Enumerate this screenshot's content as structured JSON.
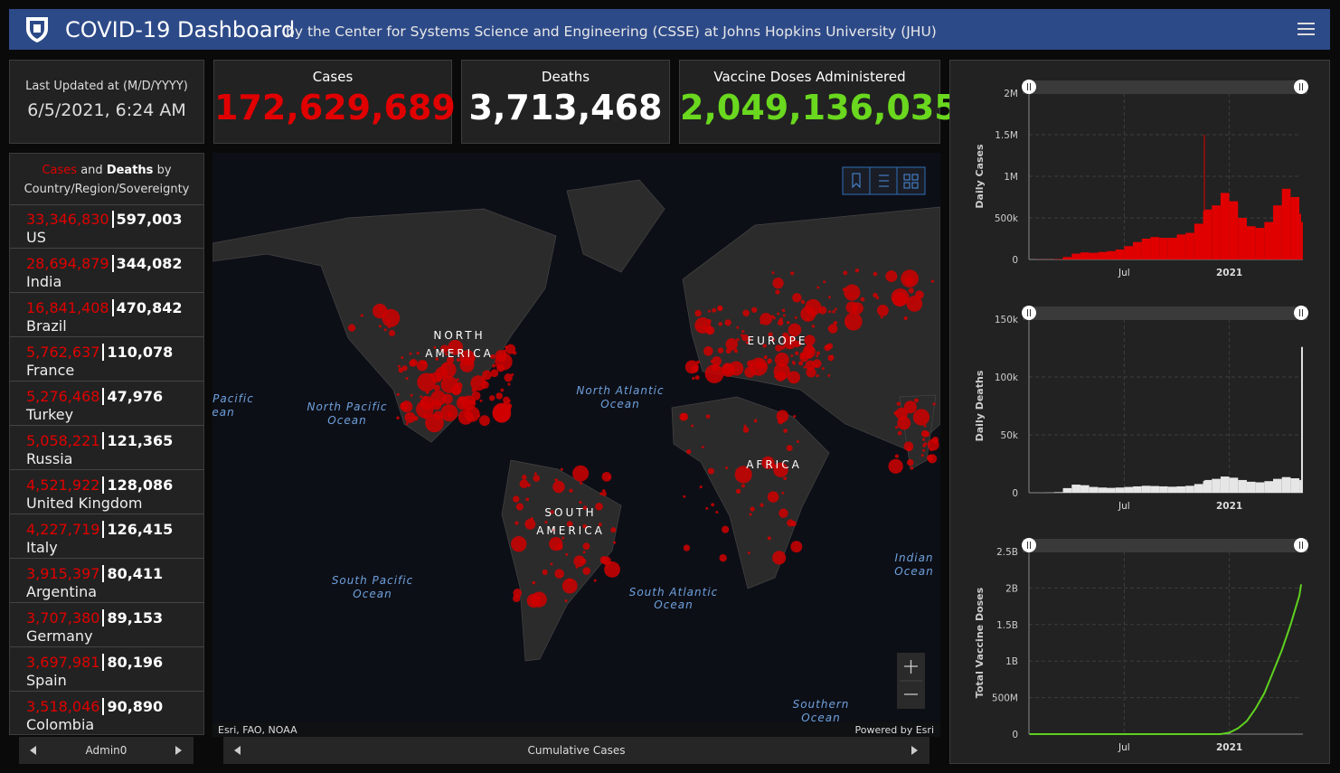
{
  "header": {
    "title": "COVID-19 Dashboard",
    "subtitle": "by the Center for Systems Science and Engineering (CSSE) at Johns Hopkins University (JHU)"
  },
  "last_updated": {
    "label": "Last Updated at (M/D/YYYY)",
    "value": "6/5/2021, 6:24 AM"
  },
  "totals": [
    {
      "label": "Cases",
      "value": "172,629,689"
    },
    {
      "label": "Deaths",
      "value": "3,713,468"
    },
    {
      "label": "Vaccine Doses Administered",
      "value": "2,049,136,035"
    }
  ],
  "country_list": {
    "title": {
      "cases": "Cases",
      "and": "and",
      "deaths": "Deaths",
      "by": "by Country/Region/Sovereignty"
    },
    "rows": [
      {
        "cases": "33,346,830",
        "deaths": "597,003",
        "name": "US"
      },
      {
        "cases": "28,694,879",
        "deaths": "344,082",
        "name": "India"
      },
      {
        "cases": "16,841,408",
        "deaths": "470,842",
        "name": "Brazil"
      },
      {
        "cases": "5,762,637",
        "deaths": "110,078",
        "name": "France"
      },
      {
        "cases": "5,276,468",
        "deaths": "47,976",
        "name": "Turkey"
      },
      {
        "cases": "5,058,221",
        "deaths": "121,365",
        "name": "Russia"
      },
      {
        "cases": "4,521,922",
        "deaths": "128,086",
        "name": "United Kingdom"
      },
      {
        "cases": "4,227,719",
        "deaths": "126,415",
        "name": "Italy"
      },
      {
        "cases": "3,915,397",
        "deaths": "80,411",
        "name": "Argentina"
      },
      {
        "cases": "3,707,380",
        "deaths": "89,153",
        "name": "Germany"
      },
      {
        "cases": "3,697,981",
        "deaths": "80,196",
        "name": "Spain"
      },
      {
        "cases": "3,518,046",
        "deaths": "90,890",
        "name": "Colombia"
      }
    ],
    "footer": "Admin0"
  },
  "map": {
    "labels": [
      "Pacific",
      "ean",
      "North Pacific",
      "Ocean",
      "NORTH",
      "AMERICA",
      "North Atlantic",
      "Ocean",
      "EUROPE",
      "AFRICA",
      "SOUTH",
      "AMERICA",
      "South Pacific",
      "Ocean",
      "South Atlantic",
      "Ocean",
      "Indian",
      "Ocean",
      "Southern",
      "Ocean"
    ],
    "attribution": "Esri, FAO, NOAA",
    "powered": "Powered by Esri",
    "footer": "Cumulative Cases"
  },
  "chart_data": [
    {
      "type": "bar",
      "ylabel": "Daily Cases",
      "color": "#e00000",
      "grid": true,
      "x": [
        0.6,
        1,
        1.5,
        2,
        2.5,
        3,
        3.5,
        4,
        4.5,
        5,
        5.5,
        6,
        6.5,
        7,
        7.5,
        8,
        8.5,
        9,
        9.5,
        10,
        10.5,
        10.55,
        10.6,
        11,
        11.5,
        12,
        12.5,
        13,
        13.5,
        14,
        14.5,
        15,
        15.5,
        16,
        16.1
      ],
      "values": [
        0,
        2000,
        2000,
        5000,
        30000,
        70000,
        85000,
        80000,
        90000,
        100000,
        120000,
        160000,
        210000,
        250000,
        270000,
        260000,
        260000,
        300000,
        320000,
        430000,
        580000,
        1500000,
        600000,
        650000,
        800000,
        700000,
        500000,
        400000,
        380000,
        450000,
        650000,
        850000,
        750000,
        550000,
        450000
      ],
      "xlim": [
        0.56,
        16.1
      ],
      "ylim": [
        0,
        2000000
      ],
      "xticks": [
        {
          "value": 6,
          "label": "Jul"
        },
        {
          "value": 12,
          "label": "2021"
        }
      ],
      "yticks": [
        0,
        {
          "value": 500000,
          "label": "500k"
        },
        {
          "value": 1000000,
          "label": "1M"
        },
        {
          "value": 1500000,
          "label": "1.5M"
        },
        {
          "value": 2000000,
          "label": "2M"
        }
      ]
    },
    {
      "type": "bar",
      "ylabel": "Daily Deaths",
      "color": "#e6e6e6",
      "grid": true,
      "x": [
        0.6,
        1,
        1.5,
        2,
        2.5,
        3,
        3.5,
        4,
        4.5,
        5,
        5.5,
        6,
        6.5,
        7,
        7.5,
        8,
        8.5,
        9,
        9.5,
        10,
        10.5,
        10.55,
        10.6,
        11,
        11.5,
        12,
        12.5,
        13,
        13.5,
        14,
        14.5,
        15,
        15.5,
        16,
        16.1
      ],
      "values": [
        0,
        0,
        100,
        500,
        4000,
        7000,
        6500,
        5000,
        4500,
        4200,
        4500,
        5000,
        5500,
        6000,
        5800,
        5500,
        5200,
        5500,
        6000,
        7500,
        10000,
        10500,
        11000,
        12000,
        14000,
        13000,
        11000,
        9500,
        9000,
        10000,
        12000,
        13500,
        12500,
        11000,
        126000
      ],
      "xlim": [
        0.56,
        16.1
      ],
      "ylim": [
        0,
        150000
      ],
      "xticks": [
        {
          "value": 6,
          "label": "Jul"
        },
        {
          "value": 12,
          "label": "2021"
        }
      ],
      "yticks": [
        0,
        {
          "value": 50000,
          "label": "50k"
        },
        {
          "value": 100000,
          "label": "100k"
        },
        {
          "value": 150000,
          "label": "150k"
        }
      ]
    },
    {
      "type": "line",
      "ylabel": "Total Vaccine Doses",
      "color": "#5fd21f",
      "grid": true,
      "x": [
        0.6,
        11.5,
        12,
        12.5,
        13,
        13.5,
        14,
        14.5,
        15,
        15.5,
        16,
        16.1
      ],
      "values": [
        0,
        0,
        20000000,
        80000000,
        180000000,
        350000000,
        560000000,
        850000000,
        1150000000,
        1500000000,
        1900000000,
        2050000000
      ],
      "xlim": [
        0.56,
        16.1
      ],
      "ylim": [
        0,
        2500000000
      ],
      "xticks": [
        {
          "value": 6,
          "label": "Jul"
        },
        {
          "value": 12,
          "label": "2021"
        }
      ],
      "yticks": [
        0,
        {
          "value": 500000000,
          "label": "500M"
        },
        {
          "value": 1000000000,
          "label": "1B"
        },
        {
          "value": 1500000000,
          "label": "1.5B"
        },
        {
          "value": 2000000000,
          "label": "2B"
        },
        {
          "value": 2500000000,
          "label": "2.5B"
        }
      ]
    }
  ]
}
